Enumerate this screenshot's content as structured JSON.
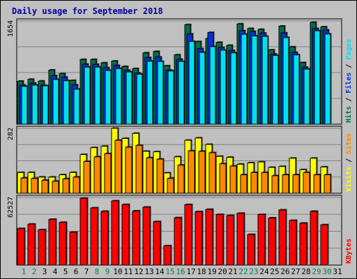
{
  "chart_data": {
    "type": "bar",
    "title": "Daily usage for September 2018",
    "categories": [
      "1",
      "2",
      "3",
      "4",
      "5",
      "6",
      "7",
      "8",
      "9",
      "10",
      "11",
      "12",
      "13",
      "14",
      "15",
      "16",
      "17",
      "18",
      "19",
      "20",
      "21",
      "22",
      "23",
      "24",
      "25",
      "26",
      "27",
      "28",
      "29",
      "30",
      "31"
    ],
    "weekend_days": [
      1,
      2,
      8,
      9,
      15,
      16,
      22,
      23,
      29,
      30
    ],
    "colors": {
      "hits": "#006f48",
      "files": "#0033e0",
      "pages": "#00e0f0",
      "visits": "#ffff00",
      "sites": "#ff8800",
      "kbytes": "#ff0000",
      "weekend_label": "#00804f",
      "weekday_label": "#000000",
      "panel_bg": "#c0c0c0",
      "frame_bg": "#c0c0c0",
      "grid": "#808080",
      "title": "#0000a0"
    },
    "panels": [
      {
        "id": "top",
        "max_label": "1654",
        "ymax": 1654,
        "legend": [
          {
            "text": "Hits",
            "color": "#006f48"
          },
          {
            "text": "Files",
            "color": "#0033e0"
          },
          {
            "text": "Pages",
            "color": "#00e0f0"
          }
        ],
        "series": [
          {
            "name": "Hits",
            "values": [
              688,
              718,
              690,
              866,
              808,
              700,
              1036,
              1036,
              982,
              1010,
              924,
              890,
              1142,
              1164,
              934,
              1110,
              1594,
              1322,
              1372,
              1310,
              1262,
              1606,
              1532,
              1518,
              1188,
              1570,
              1238,
              986,
              1630,
              1558,
              0
            ]
          },
          {
            "name": "Files",
            "values": [
              626,
              656,
              624,
              776,
              752,
              628,
              960,
              958,
              904,
              940,
              862,
              818,
              1066,
              1074,
              866,
              1040,
              1444,
              1208,
              1468,
              1228,
              1180,
              1496,
              1484,
              1458,
              1124,
              1462,
              1150,
              910,
              1532,
              1508,
              0
            ]
          },
          {
            "name": "Pages",
            "values": [
              606,
              626,
              614,
              716,
              696,
              560,
              914,
              914,
              860,
              892,
              836,
              800,
              1008,
              1004,
              852,
              1004,
              1326,
              1150,
              1242,
              1186,
              1142,
              1440,
              1414,
              1406,
              1102,
              1388,
              1110,
              882,
              1496,
              1444,
              0
            ]
          }
        ]
      },
      {
        "id": "mid",
        "max_label": "282",
        "ymax": 282,
        "legend": [
          {
            "text": "Visits",
            "color": "#ffff00"
          },
          {
            "text": "Sites",
            "color": "#ff8800"
          }
        ],
        "series": [
          {
            "name": "Visits",
            "values": [
              90,
              90,
              70,
              70,
              80,
              90,
              168,
              198,
              204,
              282,
              238,
              260,
              182,
              180,
              88,
              158,
              230,
              240,
              212,
              160,
              156,
              126,
              132,
              136,
              112,
              116,
              152,
              102,
              152,
              114,
              0
            ]
          },
          {
            "name": "Sites",
            "values": [
              66,
              64,
              56,
              52,
              62,
              70,
              138,
              158,
              172,
              230,
              200,
              208,
              154,
              148,
              64,
              122,
              184,
              182,
              176,
              128,
              118,
              80,
              90,
              90,
              76,
              80,
              80,
              90,
              80,
              80,
              0
            ]
          }
        ]
      },
      {
        "id": "bot",
        "max_label": "62527",
        "ymax": 62527,
        "legend": [
          {
            "text": "KBytes",
            "color": "#ff0000"
          }
        ],
        "series": [
          {
            "name": "KBytes",
            "values": [
              33700,
              37800,
              32600,
              42200,
              39400,
              30300,
              61800,
              52800,
              49600,
              59300,
              55900,
              50000,
              53500,
              40100,
              17800,
              43700,
              55800,
              49300,
              51400,
              46700,
              45700,
              47800,
              28200,
              46700,
              43500,
              50900,
              41200,
              38700,
              49600,
              37200,
              0
            ]
          }
        ]
      }
    ]
  }
}
